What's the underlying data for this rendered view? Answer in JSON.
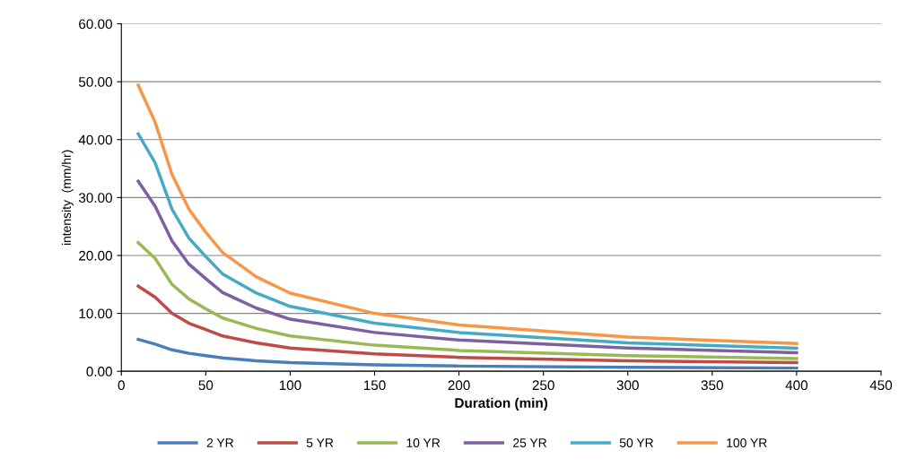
{
  "chart_data": {
    "type": "line",
    "xlabel": "Duration (min)",
    "ylabel": "intensity  (mm/hr)",
    "x": [
      10,
      20,
      30,
      40,
      50,
      60,
      80,
      100,
      150,
      200,
      300,
      400
    ],
    "series": [
      {
        "name": "2 YR",
        "color": "#4a7ebb",
        "values": [
          5.5,
          4.7,
          3.7,
          3.1,
          2.7,
          2.3,
          1.8,
          1.5,
          1.1,
          0.9,
          0.7,
          0.55
        ]
      },
      {
        "name": "5 YR",
        "color": "#be4b48",
        "values": [
          14.7,
          12.8,
          10.0,
          8.3,
          7.2,
          6.1,
          4.9,
          4.0,
          3.0,
          2.4,
          1.8,
          1.5
        ]
      },
      {
        "name": "10 YR",
        "color": "#98b954",
        "values": [
          22.2,
          19.5,
          15.0,
          12.5,
          10.8,
          9.2,
          7.4,
          6.1,
          4.5,
          3.6,
          2.7,
          2.2
        ]
      },
      {
        "name": "25 YR",
        "color": "#7d60a0",
        "values": [
          32.8,
          28.5,
          22.5,
          18.5,
          16.0,
          13.6,
          10.9,
          9.0,
          6.7,
          5.4,
          4.0,
          3.2
        ]
      },
      {
        "name": "50 YR",
        "color": "#46aac5",
        "values": [
          41.0,
          36.0,
          28.0,
          23.0,
          19.8,
          16.8,
          13.5,
          11.2,
          8.3,
          6.7,
          4.9,
          4.0
        ]
      },
      {
        "name": "100 YR",
        "color": "#f79646",
        "values": [
          49.4,
          43.0,
          34.0,
          28.0,
          24.0,
          20.5,
          16.3,
          13.5,
          10.0,
          8.0,
          5.9,
          4.8
        ]
      }
    ],
    "xlim": [
      0,
      450
    ],
    "xticks": [
      0,
      50,
      100,
      150,
      200,
      250,
      300,
      350,
      400,
      450
    ],
    "ylim": [
      0,
      60
    ],
    "yticks": [
      {
        "value": 0,
        "label": "0.00"
      },
      {
        "value": 10,
        "label": "10.00"
      },
      {
        "value": 20,
        "label": "20.00"
      },
      {
        "value": 30,
        "label": "30.00"
      },
      {
        "value": 40,
        "label": "40.00"
      },
      {
        "value": 50,
        "label": "50.00"
      },
      {
        "value": 60,
        "label": "60.00"
      }
    ],
    "grid": "y",
    "legend": "bottom",
    "marker": "none",
    "line_style": "solid"
  }
}
